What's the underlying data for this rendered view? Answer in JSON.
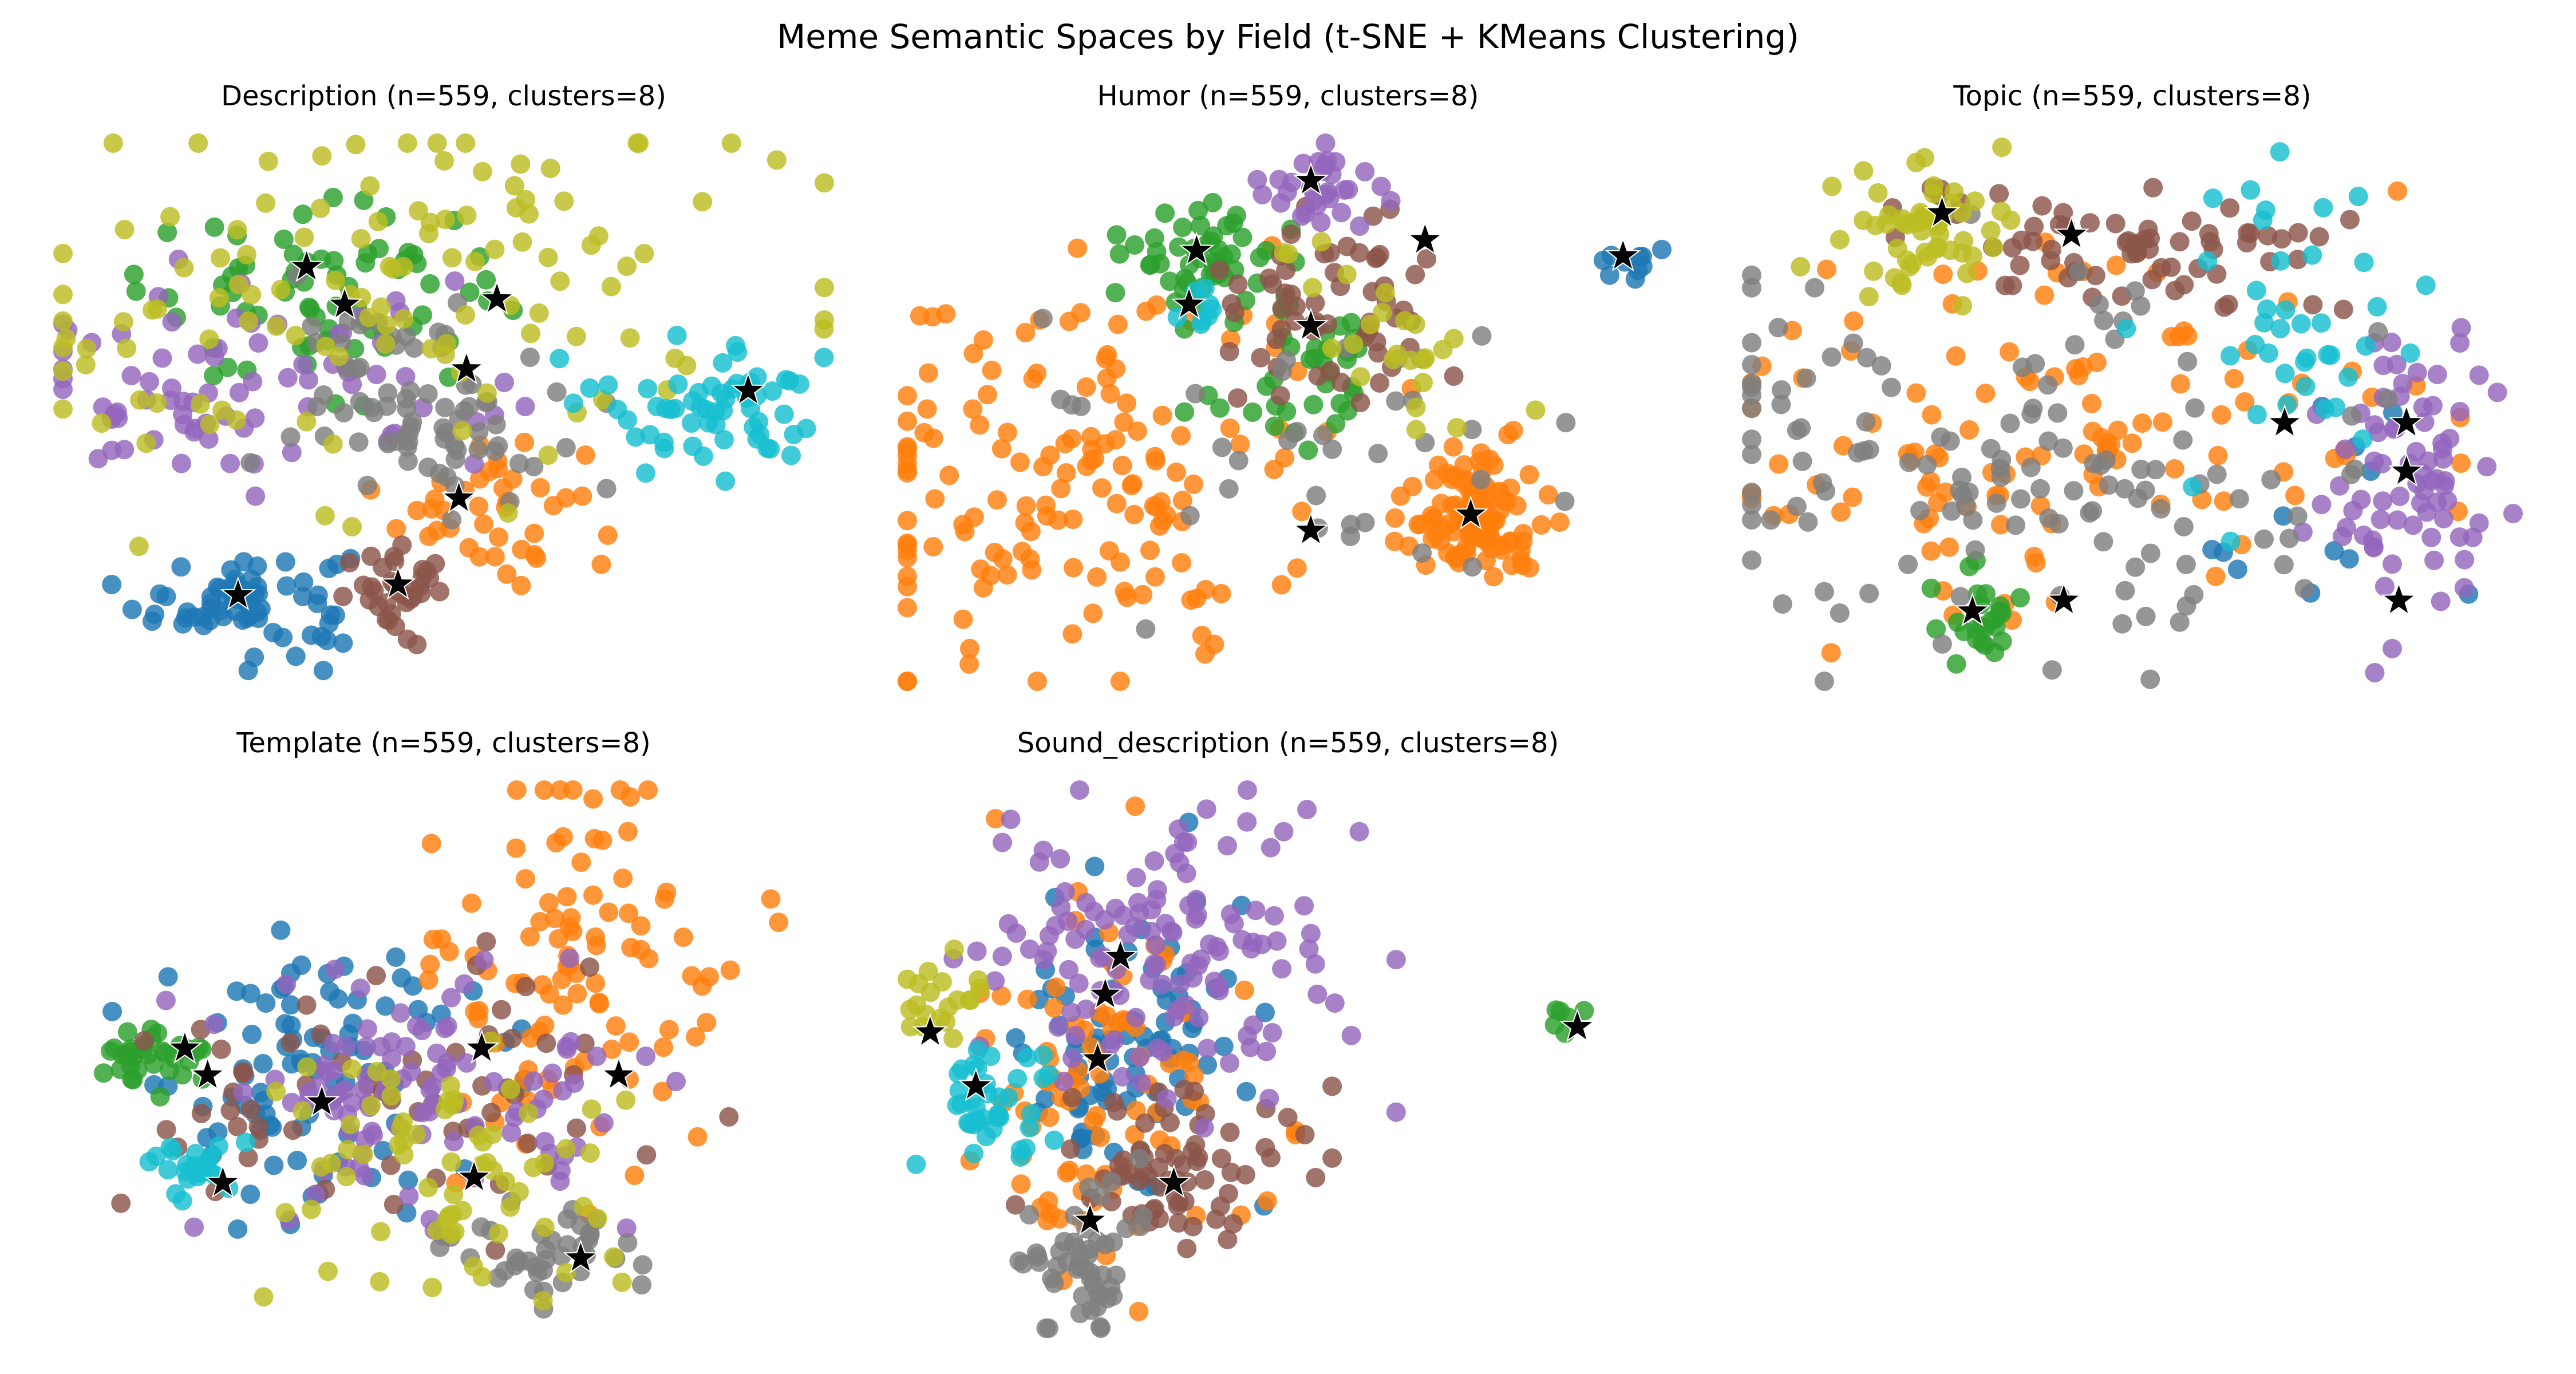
{
  "title": "Meme Semantic Spaces by Field (t-SNE + KMeans Clustering)",
  "colors": {
    "c0": "#1f77b4",
    "c1": "#ff7f0e",
    "c2": "#2ca02c",
    "c3": "#8c564b",
    "c4": "#9467bd",
    "c5": "#7f7f7f",
    "c6": "#bcbd22",
    "c7": "#17becf",
    "centroid": "#000000"
  },
  "chart_data": [
    {
      "type": "scatter",
      "title": "Description (n=559, clusters=8)",
      "axes": "hidden",
      "grid": false,
      "xlim": [
        0,
        100
      ],
      "ylim": [
        0,
        100
      ],
      "clusters": [
        {
          "cluster": 0,
          "color": "c0",
          "center": [
            24,
            15
          ],
          "spread": [
            7,
            5
          ],
          "count": 70
        },
        {
          "cluster": 1,
          "color": "c1",
          "center": [
            56,
            33
          ],
          "spread": [
            6,
            7
          ],
          "count": 40
        },
        {
          "cluster": 2,
          "color": "c2",
          "center": [
            34,
            72
          ],
          "spread": [
            12,
            8
          ],
          "count": 70
        },
        {
          "cluster": 3,
          "color": "c3",
          "center": [
            45,
            16
          ],
          "spread": [
            4,
            4
          ],
          "count": 35
        },
        {
          "cluster": 4,
          "color": "c4",
          "center": [
            24,
            55
          ],
          "spread": [
            16,
            9
          ],
          "count": 80
        },
        {
          "cluster": 5,
          "color": "c5",
          "center": [
            48,
            52
          ],
          "spread": [
            9,
            9
          ],
          "count": 75
        },
        {
          "cluster": 6,
          "color": "c6",
          "center": [
            40,
            70
          ],
          "spread": [
            28,
            20
          ],
          "count": 120
        },
        {
          "cluster": 7,
          "color": "c7",
          "center": [
            86,
            52
          ],
          "spread": [
            8,
            6
          ],
          "count": 60
        }
      ],
      "centroids": [
        [
          23,
          16
        ],
        [
          44,
          18
        ],
        [
          52,
          34
        ],
        [
          53,
          58
        ],
        [
          37,
          70
        ],
        [
          32,
          77
        ],
        [
          57,
          71
        ],
        [
          90,
          54
        ]
      ]
    },
    {
      "type": "scatter",
      "title": "Humor (n=559, clusters=8)",
      "axes": "hidden",
      "grid": false,
      "xlim": [
        0,
        100
      ],
      "ylim": [
        0,
        100
      ],
      "clusters": [
        {
          "cluster": 0,
          "color": "c0",
          "center": [
            94,
            78
          ],
          "spread": [
            2,
            2
          ],
          "count": 10
        },
        {
          "cluster": 1,
          "color": "c1",
          "center": [
            22,
            38
          ],
          "spread": [
            17,
            20
          ],
          "count": 150
        },
        {
          "cluster": 1,
          "color": "c1",
          "center": [
            74,
            31
          ],
          "spread": [
            4.5,
            6
          ],
          "count": 110
        },
        {
          "cluster": 2,
          "color": "c2",
          "center": [
            38,
            79
          ],
          "spread": [
            5,
            5
          ],
          "count": 50
        },
        {
          "cluster": 2,
          "color": "c2",
          "center": [
            52,
            58
          ],
          "spread": [
            6,
            8
          ],
          "count": 40
        },
        {
          "cluster": 3,
          "color": "c3",
          "center": [
            56,
            70
          ],
          "spread": [
            8,
            7
          ],
          "count": 60
        },
        {
          "cluster": 4,
          "color": "c4",
          "center": [
            54,
            93
          ],
          "spread": [
            4,
            4
          ],
          "count": 30
        },
        {
          "cluster": 5,
          "color": "c5",
          "center": [
            47,
            40
          ],
          "spread": [
            20,
            15
          ],
          "count": 35
        },
        {
          "cluster": 6,
          "color": "c6",
          "center": [
            62,
            64
          ],
          "spread": [
            8,
            10
          ],
          "count": 25
        },
        {
          "cluster": 7,
          "color": "c7",
          "center": [
            37,
            70
          ],
          "spread": [
            2,
            2
          ],
          "count": 8
        }
      ],
      "centroids": [
        [
          94,
          79
        ],
        [
          53,
          93
        ],
        [
          38,
          80
        ],
        [
          68,
          82
        ],
        [
          37,
          70
        ],
        [
          53,
          66
        ],
        [
          74,
          31
        ],
        [
          53,
          28
        ]
      ]
    },
    {
      "type": "scatter",
      "title": "Topic (n=559, clusters=8)",
      "axes": "hidden",
      "grid": false,
      "xlim": [
        0,
        100
      ],
      "ylim": [
        0,
        100
      ],
      "clusters": [
        {
          "cluster": 0,
          "color": "c0",
          "center": [
            78,
            30
          ],
          "spread": [
            14,
            15
          ],
          "count": 12
        },
        {
          "cluster": 1,
          "color": "c1",
          "center": [
            40,
            45
          ],
          "spread": [
            24,
            18
          ],
          "count": 120
        },
        {
          "cluster": 2,
          "color": "c2",
          "center": [
            30,
            12
          ],
          "spread": [
            3,
            4
          ],
          "count": 25
        },
        {
          "cluster": 3,
          "color": "c3",
          "center": [
            47,
            80
          ],
          "spread": [
            16,
            6
          ],
          "count": 70
        },
        {
          "cluster": 4,
          "color": "c4",
          "center": [
            88,
            38
          ],
          "spread": [
            6,
            14
          ],
          "count": 75
        },
        {
          "cluster": 5,
          "color": "c5",
          "center": [
            30,
            40
          ],
          "spread": [
            24,
            18
          ],
          "count": 130
        },
        {
          "cluster": 6,
          "color": "c6",
          "center": [
            22,
            83
          ],
          "spread": [
            6,
            7
          ],
          "count": 55
        },
        {
          "cluster": 7,
          "color": "c7",
          "center": [
            70,
            65
          ],
          "spread": [
            8,
            15
          ],
          "count": 40
        }
      ],
      "centroids": [
        [
          25,
          87
        ],
        [
          42,
          83
        ],
        [
          70,
          48
        ],
        [
          86,
          48
        ],
        [
          86,
          39
        ],
        [
          85,
          15
        ],
        [
          29,
          13
        ],
        [
          41,
          15
        ]
      ]
    },
    {
      "type": "scatter",
      "title": "Template (n=559, clusters=8)",
      "axes": "hidden",
      "grid": false,
      "xlim": [
        0,
        100
      ],
      "ylim": [
        0,
        100
      ],
      "clusters": [
        {
          "cluster": 0,
          "color": "c0",
          "center": [
            32,
            45
          ],
          "spread": [
            11,
            14
          ],
          "count": 90
        },
        {
          "cluster": 1,
          "color": "c1",
          "center": [
            68,
            68
          ],
          "spread": [
            10,
            18
          ],
          "count": 100
        },
        {
          "cluster": 2,
          "color": "c2",
          "center": [
            11,
            50
          ],
          "spread": [
            3,
            3
          ],
          "count": 35
        },
        {
          "cluster": 3,
          "color": "c3",
          "center": [
            45,
            45
          ],
          "spread": [
            20,
            14
          ],
          "count": 60
        },
        {
          "cluster": 4,
          "color": "c4",
          "center": [
            48,
            42
          ],
          "spread": [
            14,
            12
          ],
          "count": 100
        },
        {
          "cluster": 5,
          "color": "c5",
          "center": [
            64,
            14
          ],
          "spread": [
            6,
            4
          ],
          "count": 40
        },
        {
          "cluster": 6,
          "color": "c6",
          "center": [
            48,
            28
          ],
          "spread": [
            11,
            12
          ],
          "count": 70
        },
        {
          "cluster": 7,
          "color": "c7",
          "center": [
            18,
            30
          ],
          "spread": [
            3,
            3
          ],
          "count": 22
        }
      ],
      "centroids": [
        [
          16,
          52
        ],
        [
          19,
          47
        ],
        [
          34,
          42
        ],
        [
          55,
          52
        ],
        [
          73,
          47
        ],
        [
          21,
          27
        ],
        [
          54,
          28
        ],
        [
          68,
          13
        ]
      ]
    },
    {
      "type": "scatter",
      "title": "Sound_description (n=559, clusters=8)",
      "axes": "hidden",
      "grid": false,
      "xlim": [
        0,
        100
      ],
      "ylim": [
        0,
        100
      ],
      "clusters": [
        {
          "cluster": 0,
          "color": "c0",
          "center": [
            30,
            55
          ],
          "spread": [
            7,
            15
          ],
          "count": 80
        },
        {
          "cluster": 1,
          "color": "c1",
          "center": [
            25,
            45
          ],
          "spread": [
            10,
            20
          ],
          "count": 90
        },
        {
          "cluster": 2,
          "color": "c2",
          "center": [
            86,
            58
          ],
          "spread": [
            1.5,
            2
          ],
          "count": 6
        },
        {
          "cluster": 3,
          "color": "c3",
          "center": [
            35,
            30
          ],
          "spread": [
            8,
            8
          ],
          "count": 70
        },
        {
          "cluster": 4,
          "color": "c4",
          "center": [
            33,
            70
          ],
          "spread": [
            12,
            14
          ],
          "count": 130
        },
        {
          "cluster": 5,
          "color": "c5",
          "center": [
            23,
            14
          ],
          "spread": [
            4,
            8
          ],
          "count": 50
        },
        {
          "cluster": 6,
          "color": "c6",
          "center": [
            4,
            60
          ],
          "spread": [
            3,
            4
          ],
          "count": 20
        },
        {
          "cluster": 7,
          "color": "c7",
          "center": [
            11,
            42
          ],
          "spread": [
            4,
            5
          ],
          "count": 40
        }
      ],
      "centroids": [
        [
          26,
          62
        ],
        [
          25,
          50
        ],
        [
          88,
          56
        ],
        [
          35,
          27
        ],
        [
          28,
          69
        ],
        [
          24,
          20
        ],
        [
          3,
          55
        ],
        [
          9,
          45
        ]
      ]
    }
  ]
}
